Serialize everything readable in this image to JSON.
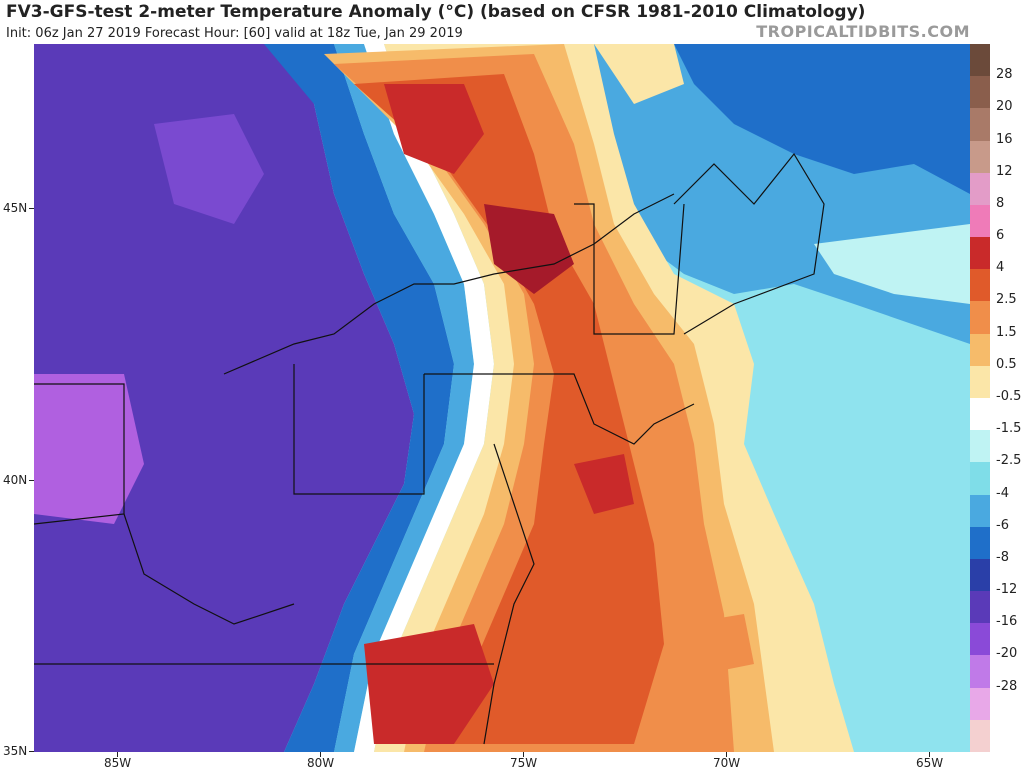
{
  "header": {
    "title": "FV3-GFS-test 2-meter Temperature Anomaly (°C) (based on CFSR 1981-2010 Climatology)",
    "subtitle": "Init: 06z Jan 27 2019   Forecast Hour: [60]   valid at 18z Tue, Jan 29 2019",
    "brand": "TROPICALTIDBITS.COM"
  },
  "axes": {
    "lat_labels": [
      "45N",
      "40N",
      "35N"
    ],
    "lon_labels": [
      "85W",
      "80W",
      "75W",
      "70W",
      "65W"
    ]
  },
  "colorbar": {
    "labels": [
      "28",
      "20",
      "16",
      "12",
      "8",
      "6",
      "4",
      "2.5",
      "1.5",
      "0.5",
      "-0.5",
      "-1.5",
      "-2.5",
      "-4",
      "-6",
      "-8",
      "-12",
      "-16",
      "-20",
      "-28"
    ],
    "colors": [
      "#6b4a3a",
      "#8a5e4c",
      "#a97a68",
      "#c89a8a",
      "#e39cc8",
      "#ef7bb8",
      "#c92a2a",
      "#e05a2a",
      "#f08e4a",
      "#f6bb6a",
      "#fbe6a8",
      "#ffffff",
      "#bff3f3",
      "#7fdde8",
      "#4aa9e0",
      "#1f6fc9",
      "#2a3fa8",
      "#5a3ab8",
      "#8a4ad8",
      "#c07ae8",
      "#e8a8e8",
      "#f4d0d0"
    ]
  },
  "map": {
    "palette": {
      "deep_purple": "#5a3ab8",
      "purple": "#7a4ad0",
      "magenta": "#b060e0",
      "dark_blue": "#2a3fa8",
      "blue": "#1f6fc9",
      "light_blue": "#4aa9e0",
      "cyan": "#8fe3ee",
      "white": "#ffffff",
      "pale_yellow": "#fbe6a8",
      "light_orange": "#f6bb6a",
      "orange": "#f08e4a",
      "red_orange": "#e05a2a",
      "red": "#c92a2a",
      "dark_red": "#a51a2a"
    }
  }
}
